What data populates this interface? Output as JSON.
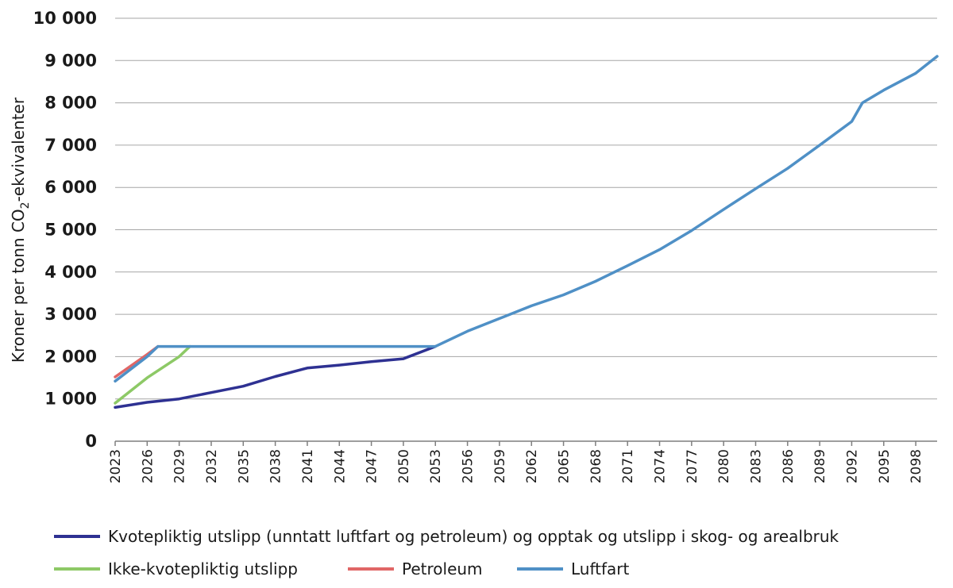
{
  "chart_data": {
    "type": "line",
    "title": "",
    "xlabel": "",
    "ylabel_main": "Kroner per tonn CO",
    "ylabel_sub": "2",
    "ylabel_tail": "-ekvivalenter",
    "ylim": [
      0,
      10000
    ],
    "yticks": [
      0,
      1000,
      2000,
      3000,
      4000,
      5000,
      6000,
      7000,
      8000,
      9000,
      10000
    ],
    "ytick_labels": [
      "0",
      "1 000",
      "2 000",
      "3 000",
      "4 000",
      "5 000",
      "6 000",
      "7 000",
      "8 000",
      "9 000",
      "10 000"
    ],
    "xlim": [
      2023,
      2100
    ],
    "xticks": [
      "2023",
      "2026",
      "2029",
      "2032",
      "2035",
      "2038",
      "2041",
      "2044",
      "2047",
      "2050",
      "2053",
      "2056",
      "2059",
      "2062",
      "2065",
      "2068",
      "2071",
      "2074",
      "2077",
      "2080",
      "2083",
      "2086",
      "2089",
      "2092",
      "2095",
      "2098"
    ],
    "grid": true,
    "legend_position": "bottom",
    "series": [
      {
        "name": "Kvotepliktig utslipp (unntatt luftfart og petroleum) og opptak og utslipp i skog- og arealbruk",
        "color": "#2e3192",
        "x": [
          2023,
          2026,
          2029,
          2032,
          2035,
          2038,
          2041,
          2044,
          2047,
          2050,
          2053
        ],
        "y": [
          800,
          920,
          1000,
          1150,
          1300,
          1530,
          1730,
          1800,
          1880,
          1950,
          2240
        ]
      },
      {
        "name": "Ikke-kvotepliktig utslipp",
        "color": "#8dc966",
        "x": [
          2023,
          2026,
          2029,
          2030
        ],
        "y": [
          900,
          1500,
          2000,
          2240
        ]
      },
      {
        "name": "Petroleum",
        "color": "#e06666",
        "x": [
          2023,
          2026,
          2027
        ],
        "y": [
          1520,
          2050,
          2240
        ]
      },
      {
        "name": "Luftfart",
        "color": "#4f90c6",
        "x": [
          2023,
          2026,
          2027,
          2053,
          2056,
          2059,
          2062,
          2065,
          2068,
          2071,
          2074,
          2077,
          2080,
          2083,
          2086,
          2089,
          2092,
          2093,
          2095,
          2098,
          2100
        ],
        "y": [
          1420,
          2000,
          2240,
          2240,
          2600,
          2900,
          3200,
          3460,
          3780,
          4150,
          4530,
          4980,
          5480,
          5970,
          6450,
          7000,
          7560,
          8000,
          8300,
          8700,
          9100
        ]
      }
    ]
  }
}
